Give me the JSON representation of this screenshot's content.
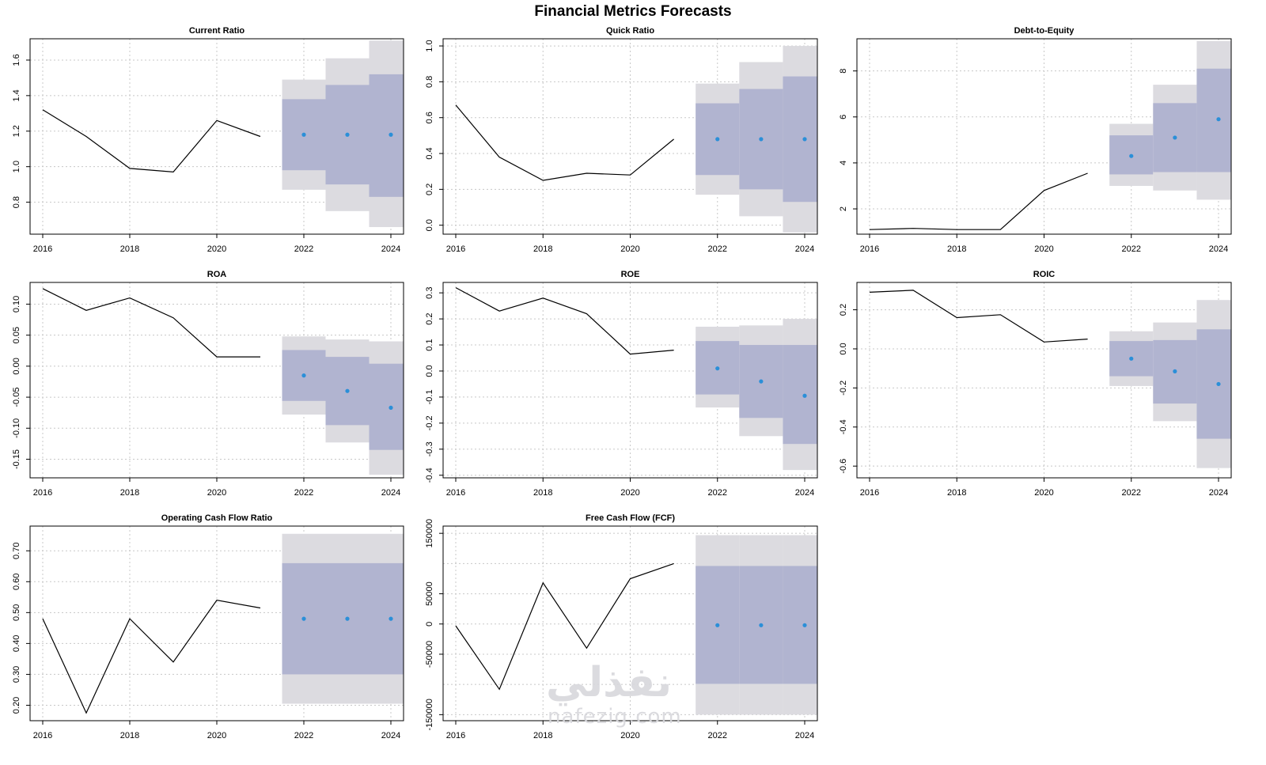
{
  "page_title": "Financial Metrics Forecasts",
  "watermark": {
    "logo_text": "نفذلي",
    "site_text": "nafezig.com"
  },
  "colors": {
    "line": "#000000",
    "point": "#2b8fd8",
    "band95": "#dcdbe0",
    "band80": "#b1b4d0",
    "grid": "#c8c8c8"
  },
  "chart_data": [
    {
      "type": "line",
      "title": "Current Ratio",
      "xlim": [
        2016,
        2024
      ],
      "ylim": [
        0.62,
        1.72
      ],
      "x_ticks": [
        2016,
        2018,
        2020,
        2022,
        2024
      ],
      "y_ticks": [
        0.8,
        1.0,
        1.2,
        1.4,
        1.6
      ],
      "history": {
        "x": [
          2016,
          2017,
          2018,
          2019,
          2020,
          2021
        ],
        "y": [
          1.32,
          1.17,
          0.99,
          0.97,
          1.26,
          1.17
        ]
      },
      "forecast": {
        "x": [
          2022,
          2023,
          2024
        ],
        "mean": [
          1.18,
          1.18,
          1.18
        ],
        "lo80": [
          0.98,
          0.9,
          0.83
        ],
        "hi80": [
          1.38,
          1.46,
          1.52
        ],
        "lo95": [
          0.87,
          0.75,
          0.66
        ],
        "hi95": [
          1.49,
          1.61,
          1.71
        ]
      }
    },
    {
      "type": "line",
      "title": "Quick Ratio",
      "xlim": [
        2016,
        2024
      ],
      "ylim": [
        -0.05,
        1.04
      ],
      "x_ticks": [
        2016,
        2018,
        2020,
        2022,
        2024
      ],
      "y_ticks": [
        0.0,
        0.2,
        0.4,
        0.6,
        0.8,
        1.0
      ],
      "history": {
        "x": [
          2016,
          2017,
          2018,
          2019,
          2020,
          2021
        ],
        "y": [
          0.67,
          0.38,
          0.25,
          0.29,
          0.28,
          0.48
        ]
      },
      "forecast": {
        "x": [
          2022,
          2023,
          2024
        ],
        "mean": [
          0.48,
          0.48,
          0.48
        ],
        "lo80": [
          0.28,
          0.2,
          0.13
        ],
        "hi80": [
          0.68,
          0.76,
          0.83
        ],
        "lo95": [
          0.17,
          0.05,
          -0.04
        ],
        "hi95": [
          0.79,
          0.91,
          1.0
        ]
      }
    },
    {
      "type": "line",
      "title": "Debt-to-Equity",
      "xlim": [
        2016,
        2024
      ],
      "ylim": [
        0.9,
        9.4
      ],
      "x_ticks": [
        2016,
        2018,
        2020,
        2022,
        2024
      ],
      "y_ticks": [
        2,
        4,
        6,
        8
      ],
      "history": {
        "x": [
          2016,
          2017,
          2018,
          2019,
          2020,
          2021
        ],
        "y": [
          1.1,
          1.15,
          1.1,
          1.1,
          2.8,
          3.55
        ]
      },
      "forecast": {
        "x": [
          2022,
          2023,
          2024
        ],
        "mean": [
          4.3,
          5.1,
          5.9
        ],
        "lo80": [
          3.5,
          3.6,
          3.6
        ],
        "hi80": [
          5.2,
          6.6,
          8.1
        ],
        "lo95": [
          3.0,
          2.8,
          2.4
        ],
        "hi95": [
          5.7,
          7.4,
          9.3
        ]
      }
    },
    {
      "type": "line",
      "title": "ROA",
      "xlim": [
        2016,
        2024
      ],
      "ylim": [
        -0.18,
        0.135
      ],
      "x_ticks": [
        2016,
        2018,
        2020,
        2022,
        2024
      ],
      "y_ticks": [
        -0.15,
        -0.1,
        -0.05,
        0.0,
        0.05,
        0.1
      ],
      "history": {
        "x": [
          2016,
          2017,
          2018,
          2019,
          2020,
          2021
        ],
        "y": [
          0.125,
          0.09,
          0.11,
          0.078,
          0.015,
          0.015
        ]
      },
      "forecast": {
        "x": [
          2022,
          2023,
          2024
        ],
        "mean": [
          -0.015,
          -0.04,
          -0.067
        ],
        "lo80": [
          -0.056,
          -0.095,
          -0.135
        ],
        "hi80": [
          0.026,
          0.015,
          0.004
        ],
        "lo95": [
          -0.078,
          -0.123,
          -0.175
        ],
        "hi95": [
          0.048,
          0.043,
          0.04
        ]
      }
    },
    {
      "type": "line",
      "title": "ROE",
      "xlim": [
        2016,
        2024
      ],
      "ylim": [
        -0.41,
        0.34
      ],
      "x_ticks": [
        2016,
        2018,
        2020,
        2022,
        2024
      ],
      "y_ticks": [
        -0.4,
        -0.3,
        -0.2,
        -0.1,
        0.0,
        0.1,
        0.2,
        0.3
      ],
      "history": {
        "x": [
          2016,
          2017,
          2018,
          2019,
          2020,
          2021
        ],
        "y": [
          0.32,
          0.23,
          0.28,
          0.22,
          0.065,
          0.08
        ]
      },
      "forecast": {
        "x": [
          2022,
          2023,
          2024
        ],
        "mean": [
          0.01,
          -0.04,
          -0.095
        ],
        "lo80": [
          -0.09,
          -0.18,
          -0.28
        ],
        "hi80": [
          0.115,
          0.1,
          0.1
        ],
        "lo95": [
          -0.14,
          -0.25,
          -0.38
        ],
        "hi95": [
          0.17,
          0.175,
          0.2
        ]
      }
    },
    {
      "type": "line",
      "title": "ROIC",
      "xlim": [
        2016,
        2024
      ],
      "ylim": [
        -0.66,
        0.34
      ],
      "x_ticks": [
        2016,
        2018,
        2020,
        2022,
        2024
      ],
      "y_ticks": [
        -0.6,
        -0.4,
        -0.2,
        0.0,
        0.2
      ],
      "history": {
        "x": [
          2016,
          2017,
          2018,
          2019,
          2020,
          2021
        ],
        "y": [
          0.29,
          0.3,
          0.16,
          0.175,
          0.035,
          0.05
        ]
      },
      "forecast": {
        "x": [
          2022,
          2023,
          2024
        ],
        "mean": [
          -0.05,
          -0.115,
          -0.18
        ],
        "lo80": [
          -0.14,
          -0.28,
          -0.46
        ],
        "hi80": [
          0.04,
          0.045,
          0.1
        ],
        "lo95": [
          -0.19,
          -0.37,
          -0.61
        ],
        "hi95": [
          0.09,
          0.135,
          0.25
        ]
      }
    },
    {
      "type": "line",
      "title": "Operating Cash Flow Ratio",
      "xlim": [
        2016,
        2024
      ],
      "ylim": [
        0.15,
        0.78
      ],
      "x_ticks": [
        2016,
        2018,
        2020,
        2022,
        2024
      ],
      "y_ticks": [
        0.2,
        0.3,
        0.4,
        0.5,
        0.6,
        0.7
      ],
      "history": {
        "x": [
          2016,
          2017,
          2018,
          2019,
          2020,
          2021
        ],
        "y": [
          0.48,
          0.175,
          0.48,
          0.34,
          0.54,
          0.515
        ]
      },
      "forecast": {
        "x": [
          2022,
          2023,
          2024
        ],
        "mean": [
          0.48,
          0.48,
          0.48
        ],
        "lo80": [
          0.3,
          0.3,
          0.3
        ],
        "hi80": [
          0.66,
          0.66,
          0.66
        ],
        "lo95": [
          0.205,
          0.205,
          0.205
        ],
        "hi95": [
          0.755,
          0.755,
          0.755
        ]
      }
    },
    {
      "type": "line",
      "title": "Free Cash Flow (FCF)",
      "xlim": [
        2016,
        2024
      ],
      "ylim": [
        -160000,
        162000
      ],
      "x_ticks": [
        2016,
        2018,
        2020,
        2022,
        2024
      ],
      "y_ticks": [
        -150000,
        -50000,
        0,
        50000,
        150000
      ],
      "y_gridlines": [
        -150000,
        -100000,
        -50000,
        0,
        50000,
        100000,
        150000
      ],
      "history": {
        "x": [
          2016,
          2017,
          2018,
          2019,
          2020,
          2021
        ],
        "y": [
          -3000,
          -108000,
          68000,
          -40000,
          75000,
          100000
        ]
      },
      "forecast": {
        "x": [
          2022,
          2023,
          2024
        ],
        "mean": [
          -2000,
          -2000,
          -2000
        ],
        "lo80": [
          -99000,
          -99000,
          -99000
        ],
        "hi80": [
          96000,
          96000,
          96000
        ],
        "lo95": [
          -150000,
          -150000,
          -150000
        ],
        "hi95": [
          147000,
          147000,
          147000
        ]
      }
    }
  ]
}
